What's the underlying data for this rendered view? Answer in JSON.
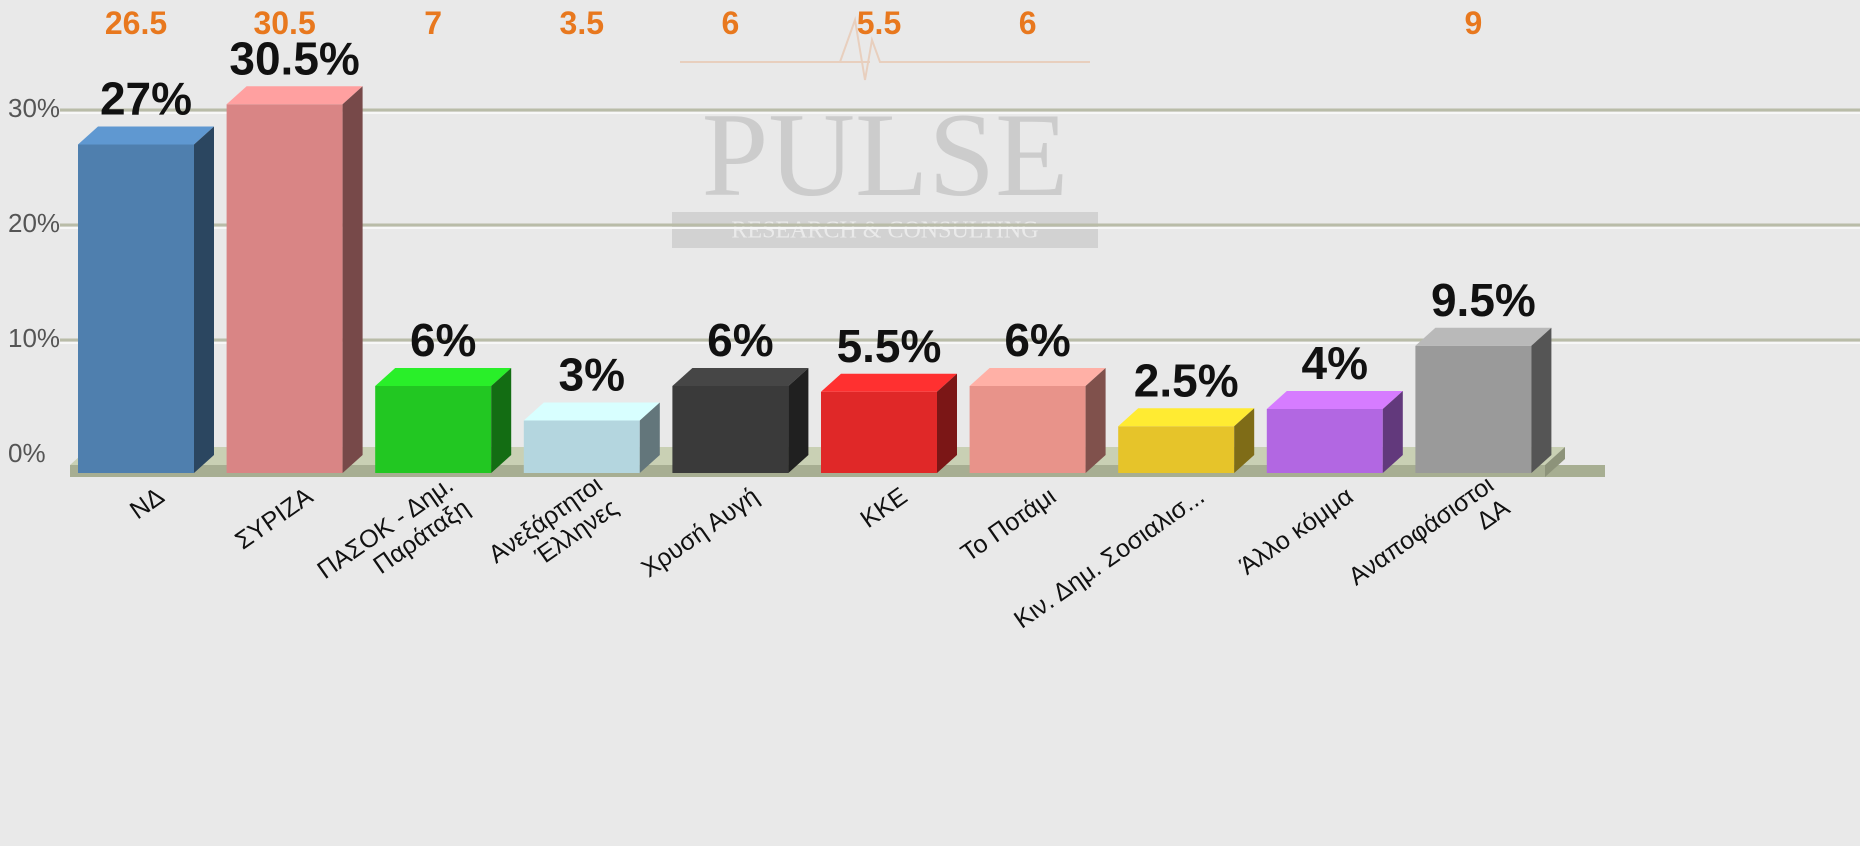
{
  "chart_data": {
    "type": "bar3d",
    "categories": [
      "ΝΔ",
      "ΣΥΡΙΖΑ",
      "ΠΑΣΟΚ - Δημ.\nΠαράταξη",
      "Ανεξάρτητοι\nΈλληνες",
      "Χρυσή Αυγή",
      "ΚΚΕ",
      "Το Ποτάμι",
      "Κιν. Δημ. Σοσιαλισ...",
      "Άλλο κόμμα",
      "Αναποφάσιστοι\nΔΑ"
    ],
    "values": [
      27,
      30.5,
      6,
      3,
      6,
      5.5,
      6,
      2.5,
      4,
      9.5
    ],
    "value_labels": [
      "27%",
      "30.5%",
      "6%",
      "3%",
      "6%",
      "5.5%",
      "6%",
      "2.5%",
      "4%",
      "9.5%"
    ],
    "previous_values": [
      26.5,
      30.5,
      7,
      3.5,
      6,
      5.5,
      6,
      null,
      null,
      9
    ],
    "colors": [
      "#4f7fae",
      "#d98585",
      "#22c722",
      "#b4d6df",
      "#3a3a3a",
      "#e02828",
      "#e8938a",
      "#e6c42a",
      "#b267e2",
      "#9a9a9a"
    ],
    "ylim": [
      0,
      35
    ],
    "yticks": [
      {
        "value": 0,
        "label": "0%"
      },
      {
        "value": 10,
        "label": "10%"
      },
      {
        "value": 20,
        "label": "20%"
      },
      {
        "value": 30,
        "label": "30%"
      }
    ],
    "grid": true,
    "watermark": {
      "title": "PULSE",
      "subtitle": "RESEARCH & CONSULTING"
    }
  }
}
